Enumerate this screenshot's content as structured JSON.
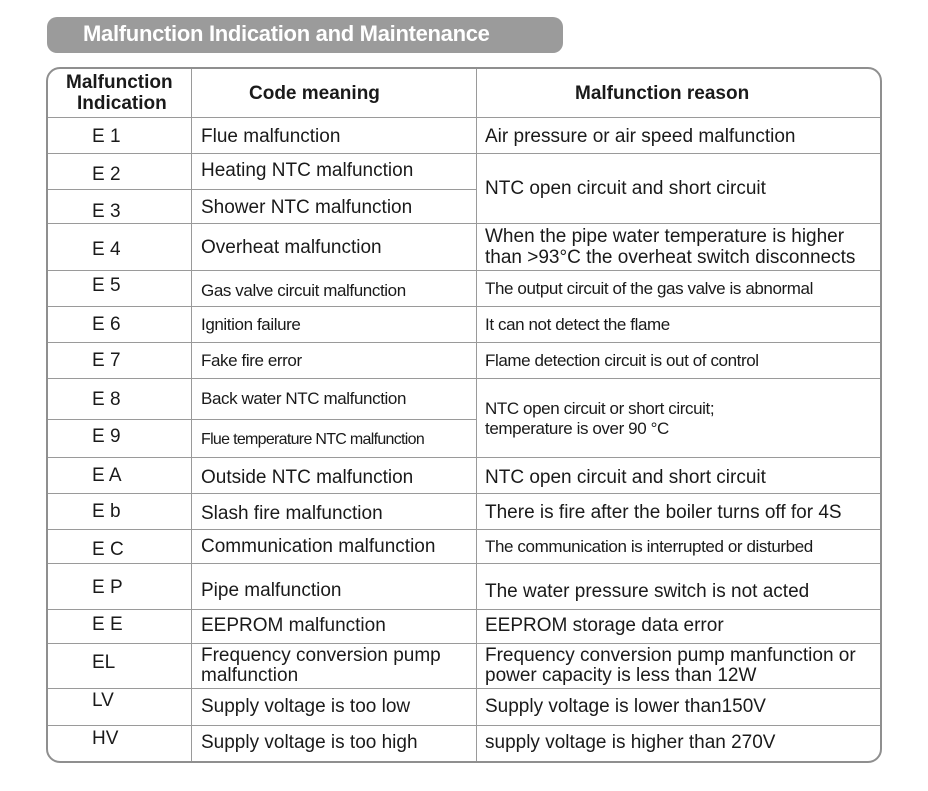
{
  "title": "Malfunction  Indication and Maintenance",
  "headers": {
    "col1_line1": "Malfunction",
    "col1_line2": "Indication",
    "col2": "Code meaning",
    "col3": "Malfunction reason"
  },
  "rows": [
    {
      "code": "E 1",
      "meaning": "Flue malfunction",
      "reason": "Air pressure or air speed malfunction"
    },
    {
      "code": "E 2",
      "meaning": "Heating NTC malfunction"
    },
    {
      "code": "E 3",
      "meaning": "Shower NTC malfunction"
    },
    {
      "code": "E 4",
      "meaning": "Overheat malfunction",
      "reason_line1": "When the pipe water temperature is higher",
      "reason_line2": "than >93°C the overheat switch disconnects"
    },
    {
      "code": "E 5",
      "meaning": "Gas valve circuit malfunction",
      "reason": "The output circuit of the gas valve is abnormal"
    },
    {
      "code": "E 6",
      "meaning": "Ignition failure",
      "reason": "It can not detect the flame"
    },
    {
      "code": "E 7",
      "meaning": "Fake fire error",
      "reason": "Flame detection circuit is out of control"
    },
    {
      "code": "E 8",
      "meaning": "Back water NTC malfunction"
    },
    {
      "code": "E 9",
      "meaning": "Flue temperature NTC malfunction"
    },
    {
      "code": "E A",
      "meaning": "Outside NTC malfunction",
      "reason": "NTC open circuit and short circuit"
    },
    {
      "code": "E b",
      "meaning": "Slash fire malfunction",
      "reason": "There is fire after the boiler turns off for 4S"
    },
    {
      "code": "E C",
      "meaning": "Communication malfunction",
      "reason": "The communication is interrupted or disturbed"
    },
    {
      "code": "E P",
      "meaning": "Pipe malfunction",
      "reason": "The water pressure switch is not acted"
    },
    {
      "code": "E E",
      "meaning": "EEPROM malfunction",
      "reason": "EEPROM storage data error"
    },
    {
      "code": "EL",
      "meaning_line1": "Frequency conversion pump",
      "meaning_line2": "malfunction",
      "reason_line1": "Frequency conversion pump manfunction or",
      "reason_line2": "power capacity is less than 12W"
    },
    {
      "code": "LV",
      "meaning": "Supply voltage is too low",
      "reason": "Supply voltage is lower than150V"
    },
    {
      "code": "HV",
      "meaning": "Supply voltage is too high",
      "reason": "supply voltage is higher than 270V"
    }
  ],
  "merged": {
    "e2_e3_reason": "NTC open circuit and short circuit",
    "e8_e9_reason_line1": "NTC open circuit or short circuit;",
    "e8_e9_reason_line2": "temperature is over 90 °C"
  }
}
